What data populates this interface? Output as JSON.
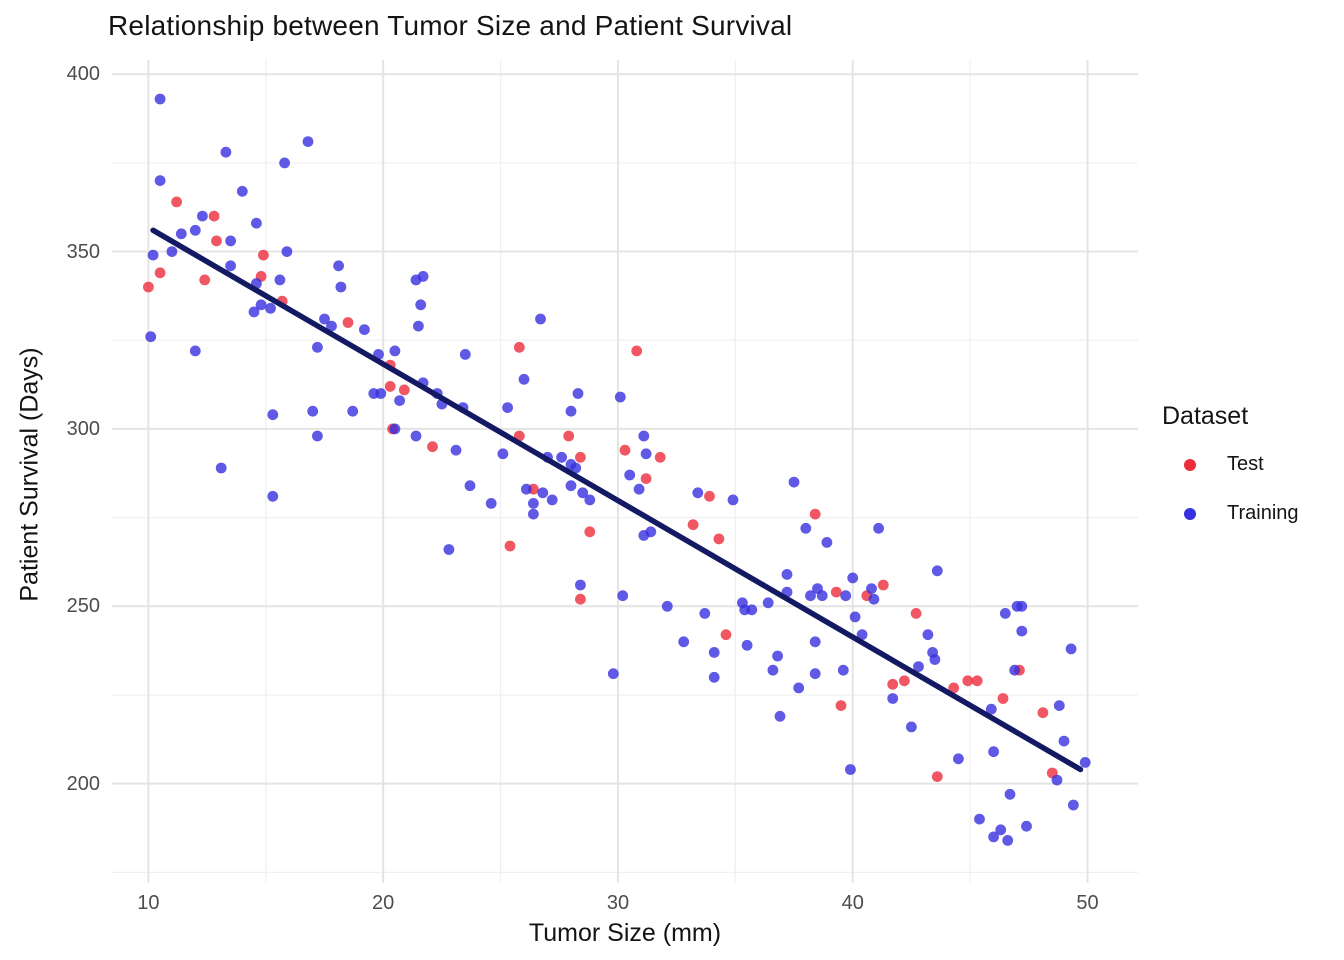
{
  "chart_data": {
    "type": "scatter",
    "title": "Relationship between Tumor Size and Patient Survival",
    "xlabel": "Tumor Size (mm)",
    "ylabel": "Patient Survival (Days)",
    "legend_title": "Dataset",
    "legend_position": "right",
    "grid": "on",
    "background": "#ffffff",
    "major_grid_color": "#e4e4e4",
    "minor_grid_color": "#f0f0f0",
    "x_range": [
      8.45,
      52.15
    ],
    "y_range": [
      172,
      404
    ],
    "x_ticks": [
      10,
      20,
      30,
      40,
      50
    ],
    "x_minor_ticks": [
      15,
      25,
      35,
      45
    ],
    "y_ticks": [
      400,
      350,
      300,
      250,
      200
    ],
    "y_minor_ticks": [
      375,
      325,
      275,
      225,
      175
    ],
    "trend_line": {
      "x1": 10.2,
      "y1": 356,
      "x2": 49.7,
      "y2": 204,
      "color": "#131a63",
      "width": 5.5
    },
    "point_radius": 5.4,
    "point_opacity": 0.8,
    "series": [
      {
        "name": "Test",
        "color": "#ee2d3c",
        "points": [
          [
            11.2,
            364
          ],
          [
            12.8,
            360
          ],
          [
            12.9,
            353
          ],
          [
            10.5,
            344
          ],
          [
            12.4,
            342
          ],
          [
            10.0,
            340
          ],
          [
            14.9,
            349
          ],
          [
            14.8,
            343
          ],
          [
            15.7,
            336
          ],
          [
            18.5,
            330
          ],
          [
            20.3,
            318
          ],
          [
            20.3,
            312
          ],
          [
            20.9,
            311
          ],
          [
            20.4,
            300
          ],
          [
            22.1,
            295
          ],
          [
            25.8,
            323
          ],
          [
            25.8,
            298
          ],
          [
            27.9,
            298
          ],
          [
            28.4,
            292
          ],
          [
            26.4,
            283
          ],
          [
            28.8,
            271
          ],
          [
            25.4,
            267
          ],
          [
            28.4,
            252
          ],
          [
            30.8,
            322
          ],
          [
            30.3,
            294
          ],
          [
            31.8,
            292
          ],
          [
            31.2,
            286
          ],
          [
            33.9,
            281
          ],
          [
            33.2,
            273
          ],
          [
            34.3,
            269
          ],
          [
            38.4,
            276
          ],
          [
            39.3,
            254
          ],
          [
            40.6,
            253
          ],
          [
            34.6,
            242
          ],
          [
            39.5,
            222
          ],
          [
            42.7,
            248
          ],
          [
            41.3,
            256
          ],
          [
            41.7,
            228
          ],
          [
            42.2,
            229
          ],
          [
            44.3,
            227
          ],
          [
            44.9,
            229
          ],
          [
            45.3,
            229
          ],
          [
            46.4,
            224
          ],
          [
            47.1,
            232
          ],
          [
            48.1,
            220
          ],
          [
            43.6,
            202
          ],
          [
            48.5,
            203
          ]
        ]
      },
      {
        "name": "Training",
        "color": "#3730df",
        "points": [
          [
            10.5,
            393
          ],
          [
            13.3,
            378
          ],
          [
            16.8,
            381
          ],
          [
            15.8,
            375
          ],
          [
            10.5,
            370
          ],
          [
            14.0,
            367
          ],
          [
            12.3,
            360
          ],
          [
            14.6,
            358
          ],
          [
            11.4,
            355
          ],
          [
            12.0,
            356
          ],
          [
            13.5,
            353
          ],
          [
            15.9,
            350
          ],
          [
            11.0,
            350
          ],
          [
            10.2,
            349
          ],
          [
            13.5,
            346
          ],
          [
            15.6,
            342
          ],
          [
            14.6,
            341
          ],
          [
            18.1,
            346
          ],
          [
            18.2,
            340
          ],
          [
            14.8,
            335
          ],
          [
            15.2,
            334
          ],
          [
            14.5,
            333
          ],
          [
            17.5,
            331
          ],
          [
            17.8,
            329
          ],
          [
            19.2,
            328
          ],
          [
            17.2,
            323
          ],
          [
            19.8,
            321
          ],
          [
            20.5,
            322
          ],
          [
            23.5,
            321
          ],
          [
            21.4,
            342
          ],
          [
            21.7,
            343
          ],
          [
            21.6,
            335
          ],
          [
            21.5,
            329
          ],
          [
            26.7,
            331
          ],
          [
            10.1,
            326
          ],
          [
            12.0,
            322
          ],
          [
            15.3,
            304
          ],
          [
            17.0,
            305
          ],
          [
            18.7,
            305
          ],
          [
            17.2,
            298
          ],
          [
            13.1,
            289
          ],
          [
            15.3,
            281
          ],
          [
            19.6,
            310
          ],
          [
            19.9,
            310
          ],
          [
            20.7,
            308
          ],
          [
            21.7,
            313
          ],
          [
            22.3,
            310
          ],
          [
            22.5,
            307
          ],
          [
            23.4,
            306
          ],
          [
            25.3,
            306
          ],
          [
            26.0,
            314
          ],
          [
            28.3,
            310
          ],
          [
            28.0,
            305
          ],
          [
            30.1,
            309
          ],
          [
            20.5,
            300
          ],
          [
            21.4,
            298
          ],
          [
            23.1,
            294
          ],
          [
            25.1,
            293
          ],
          [
            27.0,
            292
          ],
          [
            27.6,
            292
          ],
          [
            28.0,
            290
          ],
          [
            28.2,
            289
          ],
          [
            28.0,
            284
          ],
          [
            28.5,
            282
          ],
          [
            26.1,
            283
          ],
          [
            26.8,
            282
          ],
          [
            27.2,
            280
          ],
          [
            26.4,
            279
          ],
          [
            26.4,
            276
          ],
          [
            23.7,
            284
          ],
          [
            24.6,
            279
          ],
          [
            28.8,
            280
          ],
          [
            22.8,
            266
          ],
          [
            28.4,
            256
          ],
          [
            31.1,
            298
          ],
          [
            31.2,
            293
          ],
          [
            30.5,
            287
          ],
          [
            30.9,
            283
          ],
          [
            33.4,
            282
          ],
          [
            34.9,
            280
          ],
          [
            37.5,
            285
          ],
          [
            38.0,
            272
          ],
          [
            38.9,
            268
          ],
          [
            31.1,
            270
          ],
          [
            31.4,
            271
          ],
          [
            41.1,
            272
          ],
          [
            37.2,
            259
          ],
          [
            40.0,
            258
          ],
          [
            40.8,
            255
          ],
          [
            37.2,
            254
          ],
          [
            38.2,
            253
          ],
          [
            38.5,
            255
          ],
          [
            38.7,
            253
          ],
          [
            39.7,
            253
          ],
          [
            40.9,
            252
          ],
          [
            30.2,
            253
          ],
          [
            32.1,
            250
          ],
          [
            35.3,
            251
          ],
          [
            35.4,
            249
          ],
          [
            33.7,
            248
          ],
          [
            35.7,
            249
          ],
          [
            36.4,
            251
          ],
          [
            43.6,
            260
          ],
          [
            46.5,
            248
          ],
          [
            47.0,
            250
          ],
          [
            47.2,
            250
          ],
          [
            29.8,
            231
          ],
          [
            32.8,
            240
          ],
          [
            34.1,
            237
          ],
          [
            35.5,
            239
          ],
          [
            36.8,
            236
          ],
          [
            36.6,
            232
          ],
          [
            34.1,
            230
          ],
          [
            38.4,
            240
          ],
          [
            40.1,
            247
          ],
          [
            40.4,
            242
          ],
          [
            38.4,
            231
          ],
          [
            39.6,
            232
          ],
          [
            37.7,
            227
          ],
          [
            36.9,
            219
          ],
          [
            39.9,
            204
          ],
          [
            43.2,
            242
          ],
          [
            47.2,
            243
          ],
          [
            43.4,
            237
          ],
          [
            43.5,
            235
          ],
          [
            42.8,
            233
          ],
          [
            49.3,
            238
          ],
          [
            46.9,
            232
          ],
          [
            41.7,
            224
          ],
          [
            45.9,
            221
          ],
          [
            48.8,
            222
          ],
          [
            42.5,
            216
          ],
          [
            44.5,
            207
          ],
          [
            46.0,
            209
          ],
          [
            49.0,
            212
          ],
          [
            49.9,
            206
          ],
          [
            48.7,
            201
          ],
          [
            46.7,
            197
          ],
          [
            49.4,
            194
          ],
          [
            45.4,
            190
          ],
          [
            47.4,
            188
          ],
          [
            46.3,
            187
          ],
          [
            46.0,
            185
          ],
          [
            46.6,
            184
          ]
        ]
      }
    ]
  }
}
